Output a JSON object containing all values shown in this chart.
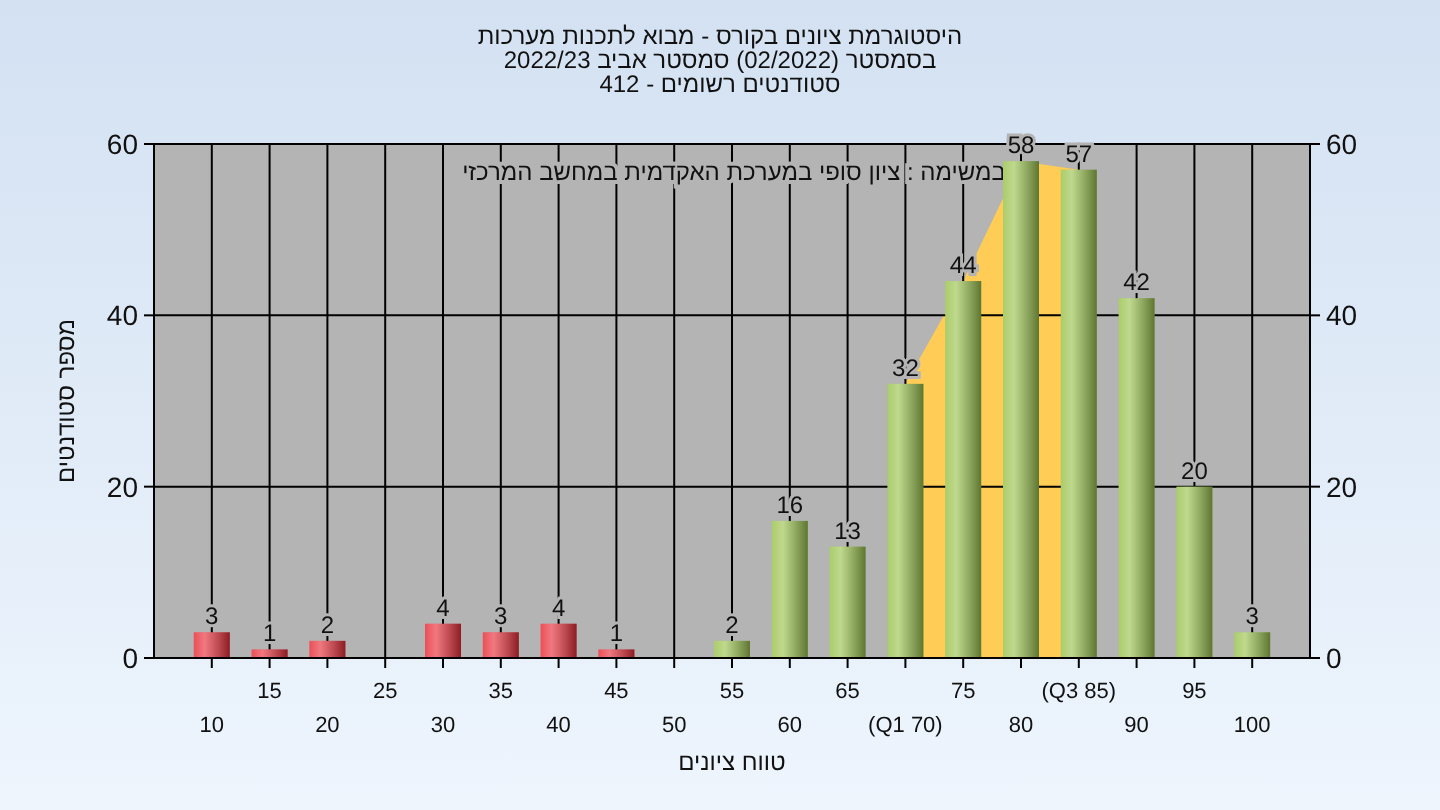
{
  "chart_data": {
    "type": "bar",
    "title": "היסטוגרמת ציונים בקורס - מבוא לתכנות מערכות",
    "subtitle": "בסמסטר (02/2022) סמסטר אביב 2022/23\nסטודנטים רשומים - 412",
    "xlabel": "טווח ציונים",
    "ylabel": "מספר סטודנטים",
    "annotations": [
      "במשימה : ציון סופי במערכת האקדמית במחשב המרכזי"
    ],
    "categories": [
      "10",
      "15",
      "20",
      "25",
      "30",
      "35",
      "40",
      "45",
      "50",
      "55",
      "60",
      "65",
      "(Q1 70)",
      "75",
      "80",
      "(Q3 85)",
      "90",
      "95",
      "100"
    ],
    "values": [
      3,
      1,
      2,
      null,
      4,
      3,
      4,
      1,
      null,
      2,
      16,
      13,
      32,
      44,
      58,
      57,
      42,
      20,
      3
    ],
    "colors": [
      "#e8303a",
      "#e8303a",
      "#e8303a",
      null,
      "#e8303a",
      "#e8303a",
      "#e8303a",
      "#e8303a",
      null,
      "#9cc450",
      "#9cc450",
      "#9cc450",
      "#9cc450",
      "#9cc450",
      "#9cc450",
      "#9cc450",
      "#9cc450",
      "#9cc450",
      "#9cc450"
    ],
    "data_labels": true,
    "bands": [
      {
        "axis": "x",
        "from": "(Q1 70)",
        "to": "(Q3 85)",
        "color": "#ffcc55"
      }
    ],
    "ylim": [
      0,
      60
    ],
    "yticks": [
      0,
      20,
      40,
      60
    ],
    "y2lim": [
      0,
      60
    ],
    "y2ticks": [
      0,
      20,
      40,
      60
    ],
    "grid": true
  }
}
